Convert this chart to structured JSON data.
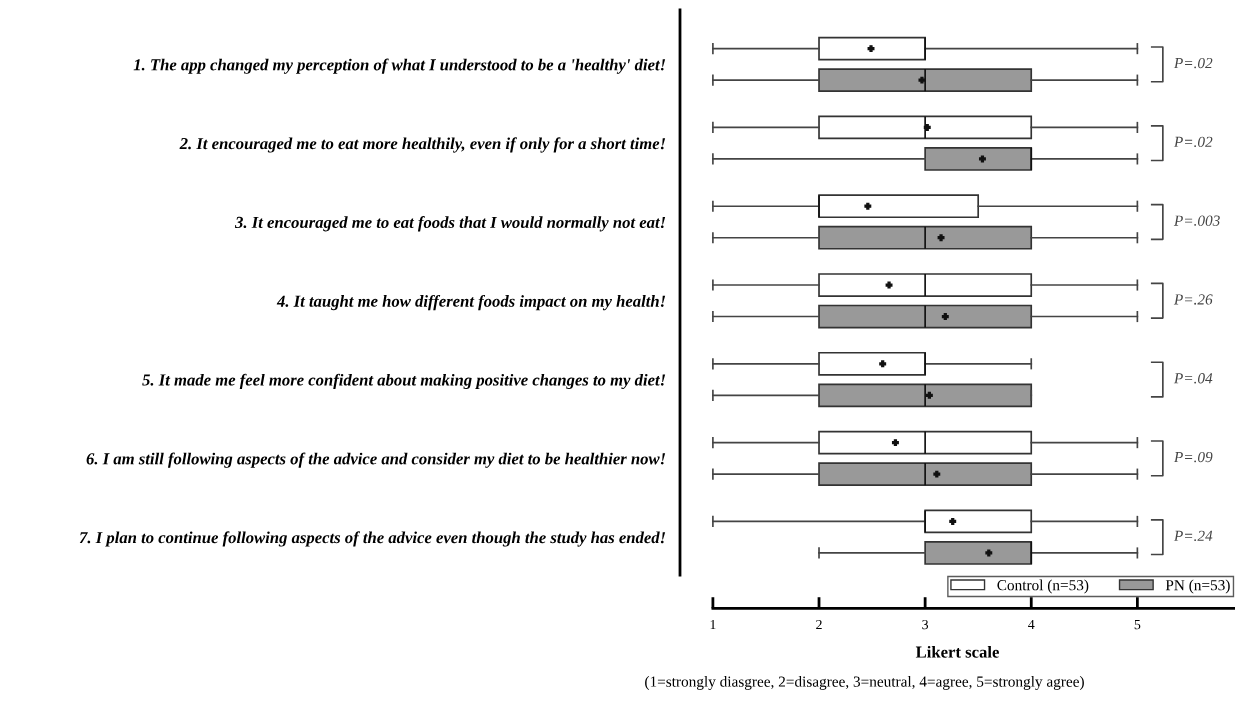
{
  "chart_data": {
    "type": "box",
    "orientation": "horizontal",
    "categories": [
      "1. The app changed my perception of what I understood to be a 'healthy' diet!",
      "2. It encouraged me to eat more healthily, even if only for a short time!",
      "3. It encouraged me to eat foods that I would normally not eat!",
      "4. It taught me how different foods impact on my health!",
      "5. It made me feel more confident about making positive changes to my diet!",
      "6. I am still following aspects of the advice and consider my diet to be healthier now!",
      "7. I plan to continue following aspects of the advice even though the study has ended!"
    ],
    "series": [
      {
        "name": "Control (n=53)",
        "color": "#ffffff",
        "boxes": [
          {
            "low": 1,
            "q1": 2,
            "median": 3,
            "q3": 3,
            "high": 5,
            "mean": 2.49
          },
          {
            "low": 1,
            "q1": 2,
            "median": 3,
            "q3": 4,
            "high": 5,
            "mean": 3.02
          },
          {
            "low": 1,
            "q1": 2,
            "median": 2,
            "q3": 3.5,
            "high": 5,
            "mean": 2.46
          },
          {
            "low": 1,
            "q1": 2,
            "median": 3,
            "q3": 4,
            "high": 5,
            "mean": 2.66
          },
          {
            "low": 1,
            "q1": 2,
            "median": 3,
            "q3": 3,
            "high": 4,
            "mean": 2.6
          },
          {
            "low": 1,
            "q1": 2,
            "median": 3,
            "q3": 4,
            "high": 5,
            "mean": 2.72
          },
          {
            "low": 1,
            "q1": 3,
            "median": 3,
            "q3": 4,
            "high": 5,
            "mean": 3.26
          }
        ]
      },
      {
        "name": "PN (n=53)",
        "color": "#999999",
        "boxes": [
          {
            "low": 1,
            "q1": 2,
            "median": 3,
            "q3": 4,
            "high": 5,
            "mean": 2.97
          },
          {
            "low": 1,
            "q1": 3,
            "median": 4,
            "q3": 4,
            "high": 5,
            "mean": 3.54
          },
          {
            "low": 1,
            "q1": 2,
            "median": 3,
            "q3": 4,
            "high": 5,
            "mean": 3.15
          },
          {
            "low": 1,
            "q1": 2,
            "median": 3,
            "q3": 4,
            "high": 5,
            "mean": 3.19
          },
          {
            "low": 1,
            "q1": 2,
            "median": 3,
            "q3": 4,
            "high": 4,
            "mean": 3.04
          },
          {
            "low": 1,
            "q1": 2,
            "median": 3,
            "q3": 4,
            "high": 5,
            "mean": 3.11
          },
          {
            "low": 2,
            "q1": 3,
            "median": 4,
            "q3": 4,
            "high": 5,
            "mean": 3.6
          }
        ]
      }
    ],
    "xlim": [
      0.69,
      5.92
    ],
    "xticks": [
      1,
      2,
      3,
      4,
      5
    ],
    "xlabel": "Likert scale",
    "annotations": [
      "P=.02",
      "P=.02",
      "P=.003",
      "P=.26",
      "P=.04",
      "P=.09",
      "P=.24",
      "(1=strongly diasgree, 2=disagree, 3=neutral, 4=agree, 5=strongly agree)"
    ],
    "legend": "bottom right",
    "marker": "cross",
    "grid": false
  }
}
